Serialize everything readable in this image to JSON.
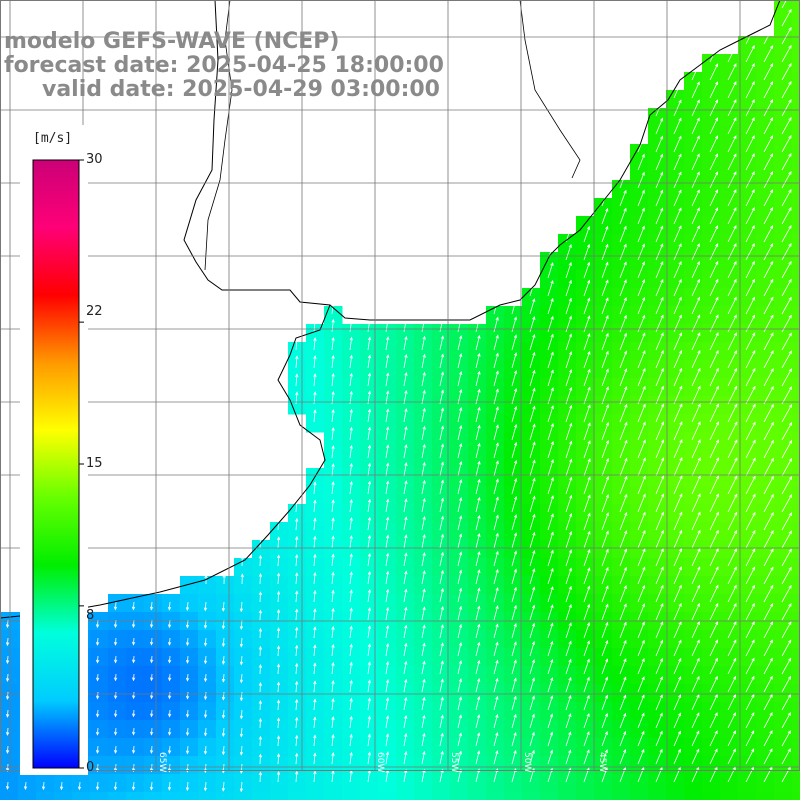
{
  "title": {
    "line1": "modelo GEFS-WAVE (NCEP)",
    "line2": "forecast date: 2025-04-25 18:00:00",
    "line3": "valid date: 2025-04-29 03:00:00"
  },
  "colorbar": {
    "unit": "[m/s]",
    "ticks": [
      {
        "label": "30",
        "value": 30
      },
      {
        "label": "22",
        "value": 22
      },
      {
        "label": "15",
        "value": 15
      },
      {
        "label": "8",
        "value": 8
      },
      {
        "label": "0",
        "value": 0
      }
    ],
    "range": [
      0,
      30
    ],
    "stops": [
      "#0000ff",
      "#00ccff",
      "#00ffdd",
      "#00ee00",
      "#66ff00",
      "#ffff00",
      "#ff9900",
      "#ff0000",
      "#ff0077",
      "#cc0077"
    ]
  },
  "longitude_labels": [
    "65W",
    "60W",
    "55W",
    "50W",
    "45W"
  ],
  "colors": {
    "land": "#ffffff",
    "coast": "#000000",
    "grid": "#666666",
    "arrow": "#ffffff",
    "title": "#8a8a8a"
  },
  "wind_field_note": "low speeds (blue) in southwest, rising to ~13 m/s (green) in east; arrows point mostly to NNE"
}
